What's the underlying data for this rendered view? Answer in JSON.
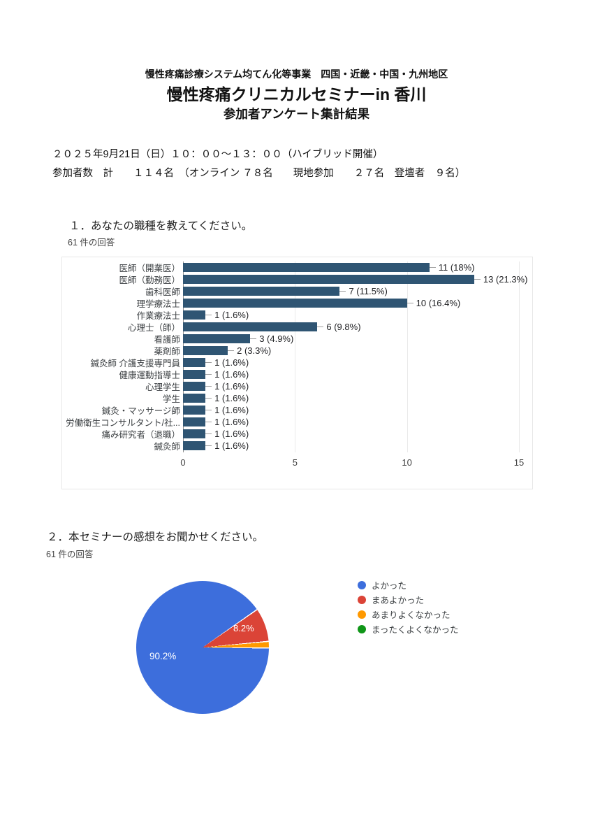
{
  "header": {
    "line1": "慢性疼痛診療システム均てん化等事業　四国・近畿・中国・九州地区",
    "line2": "慢性疼痛クリニカルセミナーin 香川",
    "line3": "参加者アンケート集計結果"
  },
  "info": {
    "line1": "２０２５年9月21日（日）１０：００～１３：００（ハイブリッド開催）",
    "line2": "参加者数　計　　１１４名　（オンライン ７８名　　現地参加　　２７名　登壇者　９名）"
  },
  "q1": {
    "title": "１．あなたの職種を教えてください。",
    "responses": "61 件の回答"
  },
  "q2": {
    "title": "２．本セミナーの感想をお聞かせください。",
    "responses": "61 件の回答"
  },
  "chart_data": [
    {
      "type": "bar",
      "orientation": "horizontal",
      "title": "１．あなたの職種を教えてください。",
      "categories": [
        "医師（開業医）",
        "医師（勤務医）",
        "歯科医師",
        "理学療法士",
        "作業療法士",
        "心理士（師）",
        "看護師",
        "薬剤師",
        "鍼灸師 介護支援専門員",
        "健康運動指導士",
        "心理学生",
        "学生",
        "鍼灸・マッサージ師",
        "労働衛生コンサルタント/社...",
        "痛み研究者（退職）",
        "鍼灸師"
      ],
      "values": [
        11,
        13,
        7,
        10,
        1,
        6,
        3,
        2,
        1,
        1,
        1,
        1,
        1,
        1,
        1,
        1
      ],
      "value_labels": [
        "11 (18%)",
        "13 (21.3%)",
        "7 (11.5%)",
        "10 (16.4%)",
        "1 (1.6%)",
        "6 (9.8%)",
        "3 (4.9%)",
        "2 (3.3%)",
        "1 (1.6%)",
        "1 (1.6%)",
        "1 (1.6%)",
        "1 (1.6%)",
        "1 (1.6%)",
        "1 (1.6%)",
        "1 (1.6%)",
        "1 (1.6%)"
      ],
      "xticks": [
        0,
        5,
        10,
        15
      ],
      "xlim": [
        0,
        15
      ],
      "bar_color": "#2F5573",
      "grid": "vertical-light"
    },
    {
      "type": "pie",
      "title": "２．本セミナーの感想をお聞かせください。",
      "labels": [
        "よかった",
        "まあよかった",
        "あまりよくなかった",
        "まったくよくなかった"
      ],
      "values": [
        90.2,
        8.2,
        1.6,
        0
      ],
      "colors": [
        "#3D6EDC",
        "#DB4437",
        "#FF9900",
        "#109618"
      ],
      "slice_labels": {
        "main": "90.2%",
        "second": "8.2%"
      },
      "legend_position": "right",
      "start_angle": "3-oclock-clockwise"
    }
  ]
}
